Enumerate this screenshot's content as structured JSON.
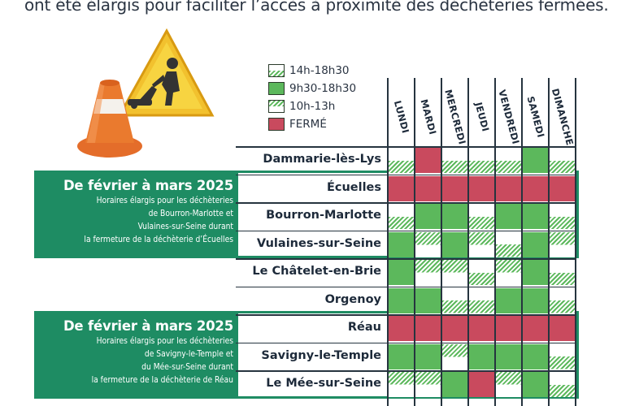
{
  "headline": "ont été élargis pour faciliter l’accès à proximité des déchèteries fermées.",
  "illustration": {
    "icons": [
      "traffic-cone-icon",
      "roadwork-sign-icon"
    ]
  },
  "legend": [
    {
      "label": "14h-18h30",
      "pattern": "pm-hatch"
    },
    {
      "label": "9h30-18h30",
      "pattern": "green"
    },
    {
      "label": "10h-13h",
      "pattern": "am-hatch"
    },
    {
      "label": "FERMÉ",
      "pattern": "red"
    }
  ],
  "days": [
    "LUNDI",
    "MARDI",
    "MERCREDI",
    "JEUDI",
    "VENDREDI",
    "SAMEDI",
    "DIMANCHE"
  ],
  "colors": {
    "green": "#5cb85c",
    "red": "#c94a5e",
    "panel": "#1e8c63"
  },
  "panels": [
    {
      "title": "De février à mars 2025",
      "lines": [
        "Horaires élargis pour les déchèteries",
        "de Bourron-Marlotte et",
        "Vulaines-sur-Seine durant",
        "la fermeture de la déchèterie d’Écuelles"
      ]
    },
    {
      "title": "De février à mars 2025",
      "lines": [
        "Horaires élargis pour les déchèteries",
        "de Savigny-le-Temple et",
        "du Mée-sur-Seine durant",
        "la fermeture de la déchèterie de Réau"
      ]
    }
  ],
  "rows": [
    {
      "name": "Dammarie-lès-Lys",
      "cells": [
        "pm",
        "red",
        "pm",
        "pm",
        "pm",
        "green",
        "pm"
      ]
    },
    {
      "name": "Écuelles",
      "cells": [
        "red",
        "red",
        "red",
        "red",
        "red",
        "red",
        "red"
      ]
    },
    {
      "name": "Bourron-Marlotte",
      "cells": [
        "pm",
        "green",
        "green",
        "pm",
        "green",
        "green",
        "pm"
      ]
    },
    {
      "name": "Vulaines-sur-Seine",
      "cells": [
        "green",
        "am",
        "green",
        "am",
        "pm",
        "green",
        "am"
      ]
    },
    {
      "name": "Le Châtelet-en-Brie",
      "cells": [
        "green",
        "am",
        "am",
        "pm",
        "am",
        "green",
        "pm"
      ]
    },
    {
      "name": "Orgenoy",
      "cells": [
        "green",
        "green",
        "pm",
        "pm",
        "green",
        "green",
        "pm"
      ]
    },
    {
      "name": "Réau",
      "cells": [
        "red",
        "red",
        "red",
        "red",
        "red",
        "red",
        "red"
      ]
    },
    {
      "name": "Savigny-le-Temple",
      "cells": [
        "green",
        "green",
        "am",
        "green",
        "green",
        "green",
        "pm"
      ]
    },
    {
      "name": "Le Mée-sur-Seine",
      "cells": [
        "am",
        "am",
        "green",
        "red",
        "am",
        "green",
        "pm"
      ]
    }
  ]
}
